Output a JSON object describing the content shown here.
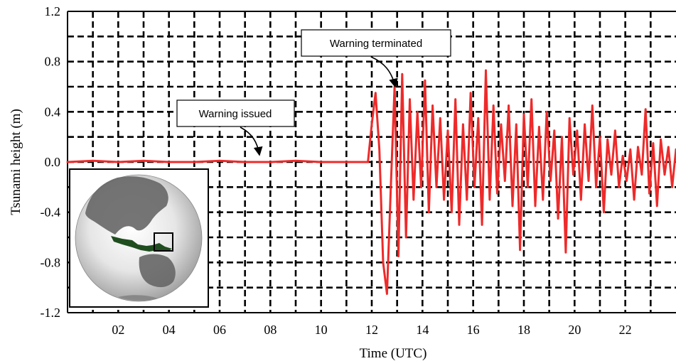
{
  "chart_data": {
    "type": "line",
    "title": "",
    "xlabel": "Time (UTC)",
    "ylabel": "Tsunami height (m)",
    "xlim": [
      0,
      24
    ],
    "ylim": [
      -1.2,
      1.2
    ],
    "x_ticks": [
      2,
      4,
      6,
      8,
      10,
      12,
      14,
      16,
      18,
      20,
      22
    ],
    "x_tick_labels": [
      "02",
      "04",
      "06",
      "08",
      "10",
      "12",
      "14",
      "16",
      "18",
      "20",
      "22"
    ],
    "y_ticks": [
      -1.2,
      -0.8,
      -0.4,
      0.0,
      0.4,
      0.8,
      1.2
    ],
    "y_tick_labels": [
      "-1.2",
      "-0.8",
      "-0.4",
      "0.0",
      "0.4",
      "0.8",
      "1.2"
    ],
    "grid": true,
    "legend": "none",
    "series_color": "#ee2a2a",
    "series": [
      {
        "x": [
          0.0,
          1.0,
          2.0,
          3.0,
          4.0,
          5.0,
          6.0,
          7.0,
          8.0,
          9.0,
          10.0,
          11.0,
          11.85,
          12.0,
          12.15,
          12.3,
          12.45,
          12.6,
          12.75,
          12.9,
          13.05,
          13.2,
          13.35,
          13.5,
          13.65,
          13.8,
          13.95,
          14.1,
          14.25,
          14.4,
          14.55,
          14.7,
          14.85,
          15.0,
          15.15,
          15.3,
          15.45,
          15.6,
          15.75,
          15.9,
          16.05,
          16.2,
          16.35,
          16.5,
          16.65,
          16.8,
          16.95,
          17.1,
          17.25,
          17.4,
          17.55,
          17.7,
          17.85,
          18.0,
          18.15,
          18.3,
          18.45,
          18.6,
          18.75,
          18.9,
          19.05,
          19.2,
          19.35,
          19.5,
          19.65,
          19.8,
          19.95,
          20.1,
          20.25,
          20.4,
          20.55,
          20.7,
          20.85,
          21.0,
          21.15,
          21.3,
          21.45,
          21.6,
          21.75,
          21.9,
          22.05,
          22.2,
          22.35,
          22.5,
          22.65,
          22.8,
          22.95,
          23.1,
          23.25,
          23.4,
          23.55,
          23.7,
          23.85,
          24.0
        ],
        "y": [
          0.0,
          0.01,
          0.0,
          0.01,
          0.0,
          0.0,
          0.01,
          0.0,
          0.0,
          0.01,
          0.0,
          0.0,
          0.0,
          0.3,
          0.55,
          0.1,
          -0.8,
          -1.05,
          -0.2,
          0.6,
          -0.75,
          0.7,
          -0.6,
          0.5,
          -0.3,
          0.4,
          -0.2,
          0.65,
          -0.4,
          0.45,
          -0.2,
          0.35,
          -0.3,
          0.25,
          -0.4,
          0.5,
          -0.5,
          0.3,
          -0.3,
          0.55,
          -0.2,
          0.35,
          -0.5,
          0.73,
          -0.3,
          0.45,
          -0.25,
          0.3,
          -0.15,
          0.45,
          -0.35,
          0.3,
          -0.7,
          0.38,
          -0.2,
          0.5,
          -0.35,
          0.28,
          -0.3,
          0.4,
          -0.15,
          0.25,
          -0.45,
          0.2,
          -0.72,
          0.35,
          -0.1,
          0.25,
          -0.3,
          0.3,
          -0.15,
          0.45,
          -0.2,
          0.2,
          -0.4,
          0.18,
          -0.1,
          0.25,
          -0.2,
          0.05,
          -0.15,
          0.1,
          -0.3,
          0.12,
          -0.1,
          0.42,
          -0.25,
          0.15,
          -0.35,
          0.18,
          -0.1,
          0.12,
          -0.2,
          0.1
        ]
      }
    ],
    "annotations": [
      {
        "text": "Warning issued",
        "x": 7.6,
        "y": 0.0
      },
      {
        "text": "Warning terminated",
        "x": 13.1,
        "y": 0.6
      }
    ]
  }
}
